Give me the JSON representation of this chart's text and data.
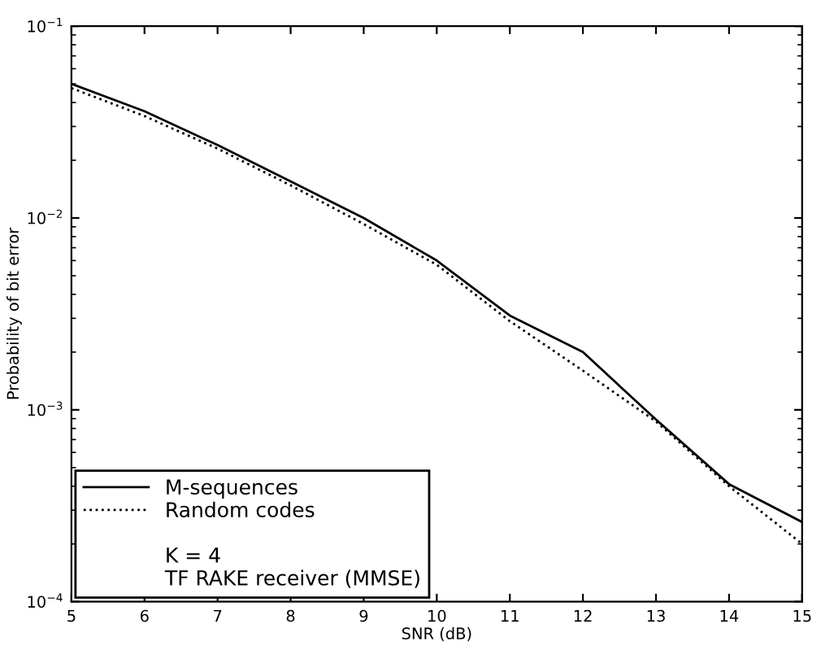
{
  "chart_data": {
    "type": "line",
    "xlabel": "SNR (dB)",
    "ylabel": "Probability of bit error",
    "x": [
      5,
      6,
      7,
      8,
      9,
      10,
      11,
      12,
      13,
      14,
      15
    ],
    "series": [
      {
        "name": "M-sequences",
        "color": "#000000",
        "line_style": "solid",
        "values": [
          0.05,
          0.036,
          0.024,
          0.0155,
          0.01,
          0.006,
          0.0031,
          0.002,
          0.00089,
          0.00041,
          0.00026
        ]
      },
      {
        "name": "Random codes",
        "color": "#000000",
        "line_style": "dotted",
        "values": [
          0.0476,
          0.034,
          0.023,
          0.0148,
          0.0093,
          0.0057,
          0.0029,
          0.0016,
          0.00087,
          0.0004,
          0.0002
        ]
      }
    ],
    "annotations": [
      "K = 4",
      "TF RAKE receiver (MMSE)"
    ],
    "log": "y",
    "xlim": [
      5,
      15
    ],
    "ylim": [
      0.0001,
      0.1
    ],
    "xticks": [
      5,
      6,
      7,
      8,
      9,
      10,
      11,
      12,
      13,
      14,
      15
    ],
    "yticks": [
      {
        "value": 0.1,
        "label": "10$^{−1}$"
      },
      {
        "value": 0.01,
        "label": "10$^{−2}$"
      },
      {
        "value": 0.001,
        "label": "10$^{−3}$"
      },
      {
        "value": 0.0001,
        "label": "10$^{−4}$"
      }
    ],
    "grid": false,
    "legend": "bottom left",
    "marker": "none"
  }
}
